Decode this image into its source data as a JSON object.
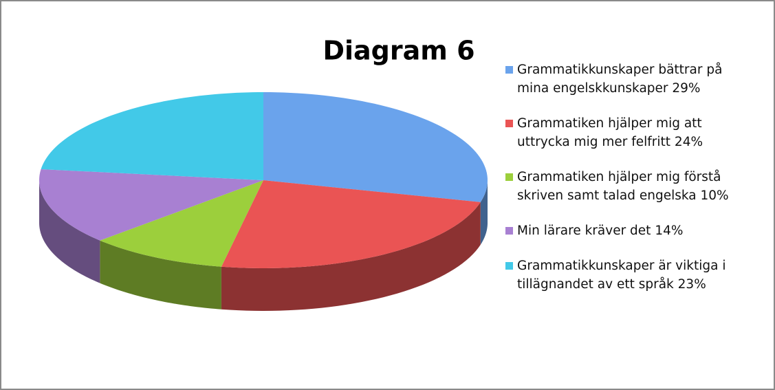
{
  "chart_data": {
    "type": "pie",
    "title": "Diagram 6",
    "categories": [
      "Grammatikkunskaper bättrar på mina engelskkunskaper 29%",
      "Grammatiken hjälper mig att uttrycka mig mer felfritt 24%",
      "Grammatiken hjälper mig förstå skriven samt talad engelska 10%",
      "Min lärare kräver det 14%",
      "Grammatikkunskaper är viktiga i tillägnandet av ett språk 23%"
    ],
    "values": [
      29,
      24,
      10,
      14,
      23
    ],
    "colors": [
      "#6aa3ec",
      "#ea5454",
      "#9ccf3c",
      "#a880d2",
      "#42c9e8"
    ],
    "legend": "right"
  }
}
